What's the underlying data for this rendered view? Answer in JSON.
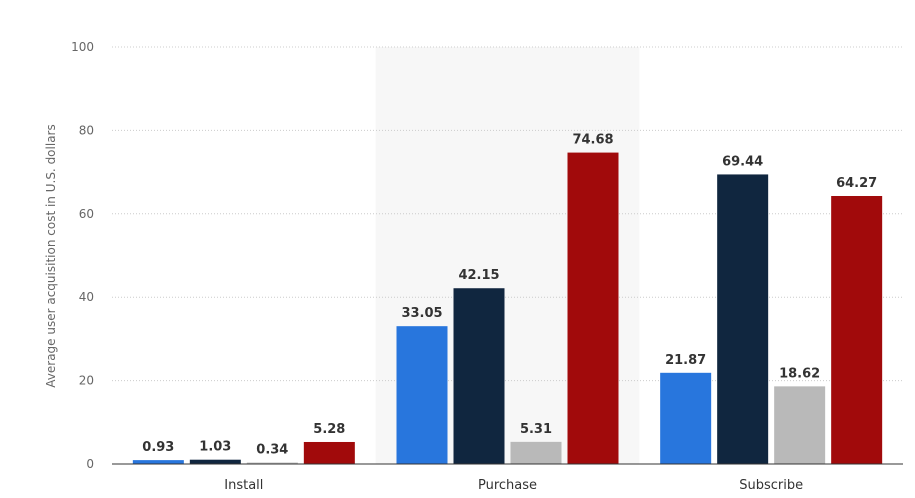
{
  "chart_data": {
    "type": "bar",
    "title": "",
    "xlabel": "",
    "ylabel": "Average user acquisition cost in U.S. dollars",
    "categories": [
      "Install",
      "Purchase",
      "Subscribe"
    ],
    "ylim": [
      0,
      100
    ],
    "yticks": [
      0,
      20,
      40,
      60,
      80,
      100
    ],
    "grid": true,
    "highlighted_category": "Purchase",
    "series": [
      {
        "values": [
          0.93,
          33.05,
          21.87
        ],
        "color": "#2876dd"
      },
      {
        "values": [
          1.03,
          42.15,
          69.44
        ],
        "color": "#10263f"
      },
      {
        "values": [
          0.34,
          5.31,
          18.62
        ],
        "color": "#b9b9b9"
      },
      {
        "values": [
          5.28,
          74.68,
          64.27
        ],
        "color": "#a10a0b"
      }
    ],
    "colors": {
      "grid": "#cccccc",
      "highlight_band": "#f7f7f7",
      "axis": "#333333"
    }
  }
}
